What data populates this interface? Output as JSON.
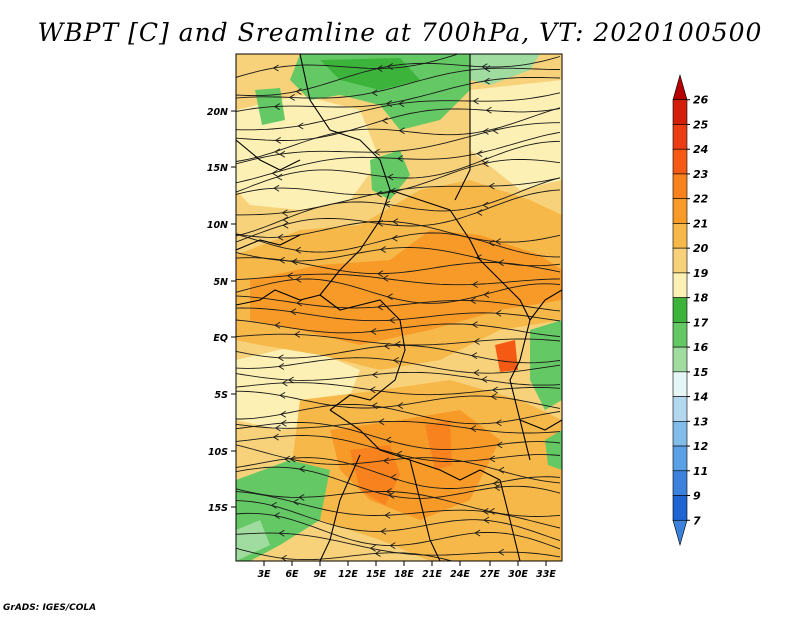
{
  "title": "WBPT [C] and Sreamline at 700hPa, VT: 2020100500",
  "footer": "GrADS: IGES/COLA",
  "map": {
    "lat_labels": [
      "20N",
      "15N",
      "10N",
      "5N",
      "EQ",
      "5S",
      "10S",
      "15S"
    ],
    "lon_labels": [
      "3E",
      "6E",
      "9E",
      "12E",
      "15E",
      "18E",
      "21E",
      "24E",
      "27E",
      "30E",
      "33E"
    ]
  },
  "colorbar": {
    "labels": [
      "26",
      "25",
      "24",
      "23",
      "22",
      "21",
      "20",
      "19",
      "18",
      "17",
      "16",
      "15",
      "14",
      "13",
      "12",
      "11",
      "9",
      "7"
    ],
    "colors": [
      "#b40000",
      "#d21e0a",
      "#eb3c14",
      "#f55a14",
      "#f7821e",
      "#f79a28",
      "#f7b84a",
      "#f7d27a",
      "#fdf0b4",
      "#3cb43c",
      "#64c864",
      "#a0dca0",
      "#e6f5f5",
      "#b4d7f0",
      "#82bceb",
      "#5aa0e6",
      "#3c82dc",
      "#1e64d2",
      "#3c82dc"
    ]
  },
  "colors": {
    "green_dark": "#3cb43c",
    "green_mid": "#64c864",
    "green_light": "#a0dca0",
    "yellow_pale": "#fdf0b4",
    "yellow": "#f7d27a",
    "orange_light": "#f7b84a",
    "orange": "#f79a28",
    "orange_dark": "#f7821e",
    "red_orange": "#f55a14"
  }
}
